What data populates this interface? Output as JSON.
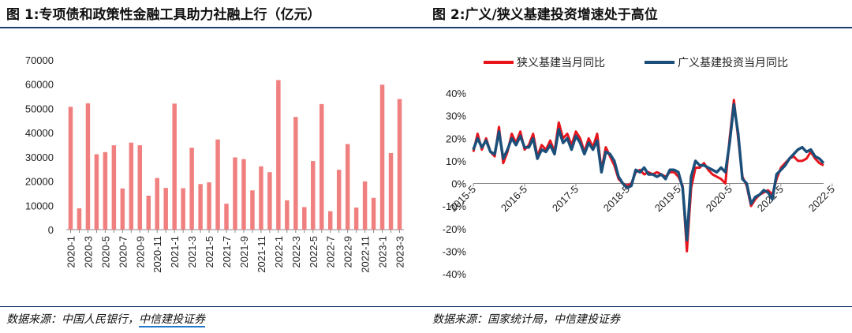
{
  "left_figure": {
    "title": "图 1:专项债和政策性金融工具助力社融上行（亿元）",
    "source_prefix": "数据来源：中国人民银行，",
    "source_link": "中信建投证券"
  },
  "right_figure": {
    "title": "图 2:广义/狭义基建投资增速处于高位",
    "source": "数据来源：国家统计局，中信建投证券"
  },
  "colors": {
    "bar": "#f08080",
    "narrow_line": "#e8141c",
    "broad_line": "#1b4f7a",
    "rule": "#1f3f6a",
    "link_underline": "#1f78c8"
  },
  "chart_data": [
    {
      "type": "bar",
      "title": "",
      "xlabel": "",
      "ylabel": "",
      "ylim": [
        0,
        70000
      ],
      "yticks": [
        "0",
        "10000",
        "20000",
        "30000",
        "40000",
        "50000",
        "60000",
        "70000"
      ],
      "xtick_labels": [
        "2020-1",
        "2020-3",
        "2020-5",
        "2020-7",
        "2020-9",
        "2020-11",
        "2021-1",
        "2021-3",
        "2021-5",
        "2021-7",
        "2021-9",
        "2021-11",
        "2022-1",
        "2022-3",
        "2022-5",
        "2022-7",
        "2022-9",
        "2022-11",
        "2023-1",
        "2023-3"
      ],
      "categories": [
        "2020-1",
        "2020-2",
        "2020-3",
        "2020-4",
        "2020-5",
        "2020-6",
        "2020-7",
        "2020-8",
        "2020-9",
        "2020-10",
        "2020-11",
        "2020-12",
        "2021-1",
        "2021-2",
        "2021-3",
        "2021-4",
        "2021-5",
        "2021-6",
        "2021-7",
        "2021-8",
        "2021-9",
        "2021-10",
        "2021-11",
        "2021-12",
        "2022-1",
        "2022-2",
        "2022-3",
        "2022-4",
        "2022-5",
        "2022-6",
        "2022-7",
        "2022-8",
        "2022-9",
        "2022-10",
        "2022-11",
        "2022-12",
        "2023-1",
        "2023-2",
        "2023-3"
      ],
      "values": [
        50700,
        8800,
        52100,
        31100,
        32000,
        34800,
        17000,
        35900,
        34800,
        14000,
        21300,
        17200,
        52000,
        17100,
        33800,
        18800,
        19500,
        37200,
        10700,
        29800,
        29100,
        16200,
        26100,
        23700,
        61700,
        12100,
        46500,
        9300,
        28300,
        51800,
        7600,
        24700,
        35300,
        9100,
        19900,
        13100,
        59800,
        31600,
        53900
      ],
      "grid": false,
      "legend": "none"
    },
    {
      "type": "line",
      "title": "",
      "xlabel": "",
      "ylabel": "",
      "ylim": [
        -40,
        40
      ],
      "yticks": [
        "-40%",
        "-30%",
        "-20%",
        "-10%",
        "0%",
        "10%",
        "20%",
        "30%",
        "40%"
      ],
      "xtick_labels": [
        "2015-5",
        "2016-5",
        "2017-5",
        "2018-5",
        "2019-5",
        "2020-5",
        "2021-5",
        "2022-5"
      ],
      "x_start": "2015-5",
      "legend": "top",
      "grid": false,
      "series": [
        {
          "name": "狭义基建当月同比",
          "values": [
            14,
            22,
            15,
            20,
            14,
            12,
            25,
            9,
            14,
            22,
            18,
            23,
            15,
            17,
            22,
            12,
            17,
            15,
            19,
            14,
            27,
            20,
            22,
            17,
            23,
            20,
            14,
            20,
            16,
            22,
            6,
            16,
            12,
            8,
            2,
            0,
            -1,
            0,
            5,
            6,
            4,
            5,
            4,
            5,
            4,
            3,
            5,
            5,
            3,
            -1,
            -30,
            -2,
            7,
            7,
            9,
            6,
            4,
            3,
            2,
            0,
            20,
            37,
            20,
            3,
            -1,
            -10,
            -7,
            -5,
            -4,
            -3,
            -5,
            2,
            7,
            9,
            11,
            12,
            10,
            10,
            11,
            14,
            11,
            9,
            8
          ]
        },
        {
          "name": "广义基建投资当月同比",
          "values": [
            15,
            20,
            16,
            19,
            14,
            13,
            23,
            11,
            15,
            20,
            17,
            21,
            16,
            16,
            20,
            11,
            15,
            14,
            17,
            13,
            24,
            18,
            20,
            15,
            21,
            18,
            13,
            18,
            15,
            19,
            5,
            14,
            13,
            10,
            3,
            0,
            -2,
            -1,
            6,
            5,
            7,
            4,
            4,
            3,
            4,
            2,
            6,
            6,
            5,
            -2,
            -25,
            3,
            10,
            8,
            8,
            7,
            6,
            5,
            7,
            5,
            18,
            35,
            22,
            2,
            0,
            -9,
            -6,
            -5,
            -3,
            -4,
            -7,
            4,
            6,
            8,
            11,
            13,
            15,
            16,
            14,
            15,
            12,
            11,
            9
          ]
        }
      ]
    }
  ]
}
